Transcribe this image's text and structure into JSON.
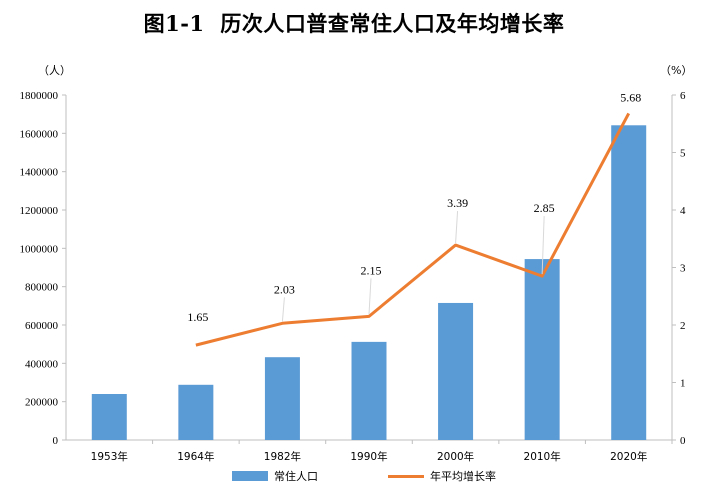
{
  "chart_data": {
    "type": "bar",
    "title": "图1-1  历次人口普查常住人口及年均增长率",
    "title_parts": [
      "图1-1",
      "历次人口普查常住人口及年均增长率"
    ],
    "left_unit": "（人）",
    "right_unit": "（%）",
    "categories": [
      "1953年",
      "1964年",
      "1982年",
      "1990年",
      "2000年",
      "2010年",
      "2020年"
    ],
    "series": [
      {
        "name": "常住人口",
        "type": "bar",
        "axis": "left",
        "color": "#5b9bd5",
        "values": [
          240000,
          288000,
          432000,
          512000,
          715000,
          944000,
          1642000
        ]
      },
      {
        "name": "年平均增长率",
        "type": "line",
        "axis": "right",
        "color": "#ed7d31",
        "values": [
          null,
          1.65,
          2.03,
          2.15,
          3.39,
          2.85,
          5.68
        ],
        "labels": [
          "",
          "1.65",
          "2.03",
          "2.15",
          "3.39",
          "2.85",
          "5.68"
        ]
      }
    ],
    "y_left": {
      "min": 0,
      "max": 1800000,
      "ticks": [
        0,
        200000,
        400000,
        600000,
        800000,
        1000000,
        1200000,
        1400000,
        1600000,
        1800000
      ]
    },
    "y_right": {
      "min": 0,
      "max": 6,
      "ticks": [
        0,
        1,
        2,
        3,
        4,
        5,
        6
      ]
    },
    "grid": false,
    "legend_position": "bottom"
  }
}
